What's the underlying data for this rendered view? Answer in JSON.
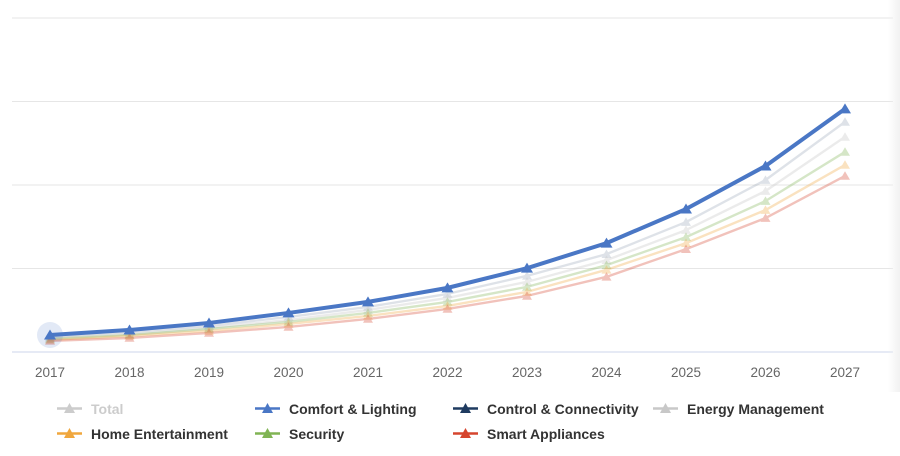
{
  "chart_data": {
    "type": "line",
    "title": "",
    "x_categories": [
      "2017",
      "2018",
      "2019",
      "2020",
      "2021",
      "2022",
      "2023",
      "2024",
      "2025",
      "2026",
      "2027"
    ],
    "x_axis": {
      "label_color": "#666666"
    },
    "y_axis": {
      "labels_visible": false,
      "gridline_values": [
        0,
        25,
        50,
        75,
        100
      ],
      "note": "No y-axis tick labels are shown in the image; series values are estimated as percent of plot height (0 = x-axis, 100 = top gridline)."
    },
    "grid": {
      "gridline_color": "#e6e6e6",
      "axis_line_color": "#ccd6eb"
    },
    "legend_position": "bottom",
    "series": [
      {
        "name": "Control & Connectivity",
        "color": "#1f3b60",
        "marker": "triangle",
        "state": "faded",
        "fade_opacity": 0.14,
        "values": [
          4.5,
          6.0,
          7.8,
          10.5,
          13.5,
          17.4,
          22.8,
          29.3,
          38.9,
          51.5,
          68.9
        ]
      },
      {
        "name": "Energy Management",
        "color": "#c8c8c8",
        "marker": "triangle",
        "state": "faded",
        "fade_opacity": 0.35,
        "values": [
          4.2,
          5.4,
          7.2,
          9.6,
          12.6,
          16.2,
          21.0,
          27.5,
          36.5,
          48.2,
          64.4
        ]
      },
      {
        "name": "Security",
        "color": "#80b454",
        "marker": "triangle",
        "state": "faded",
        "fade_opacity": 0.32,
        "values": [
          3.9,
          5.1,
          6.9,
          9.0,
          11.7,
          15.0,
          19.5,
          26.0,
          34.4,
          45.2,
          59.9
        ]
      },
      {
        "name": "Home Entertainment",
        "color": "#f0a73e",
        "marker": "triangle",
        "state": "faded",
        "fade_opacity": 0.32,
        "values": [
          3.6,
          4.8,
          6.3,
          8.4,
          10.8,
          13.8,
          18.0,
          24.6,
          32.6,
          42.5,
          56.0
        ]
      },
      {
        "name": "Smart Appliances",
        "color": "#d6452e",
        "marker": "triangle",
        "state": "faded",
        "fade_opacity": 0.32,
        "values": [
          3.3,
          4.2,
          5.7,
          7.5,
          9.9,
          12.9,
          16.8,
          22.5,
          30.8,
          40.1,
          52.7
        ]
      },
      {
        "name": "Comfort & Lighting",
        "color": "#4a77c5",
        "marker": "triangle",
        "state": "highlighted",
        "fade_opacity": 1,
        "hover_point_index": 0,
        "values": [
          5.1,
          6.6,
          8.7,
          11.7,
          15.0,
          19.2,
          25.1,
          32.6,
          42.8,
          55.7,
          72.8
        ]
      },
      {
        "name": "Total",
        "color": "#cccccc",
        "marker": "triangle",
        "state": "disabled",
        "fade_opacity": 1,
        "values": []
      }
    ],
    "legend": {
      "rows": [
        [
          "Total",
          "Comfort & Lighting",
          "Control & Connectivity",
          "Energy Management"
        ],
        [
          "Home Entertainment",
          "Security",
          "Smart Appliances"
        ]
      ],
      "disabled_text_color": "#cccccc",
      "text_color": "#333333"
    }
  }
}
